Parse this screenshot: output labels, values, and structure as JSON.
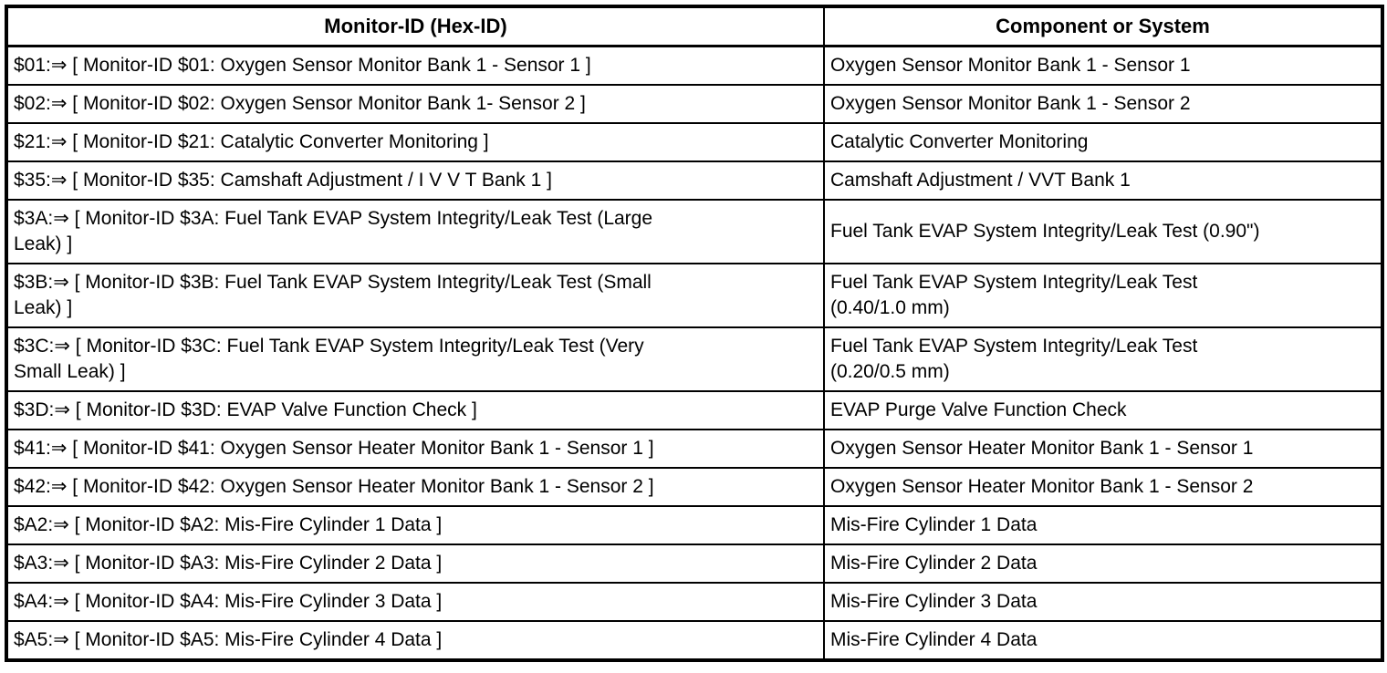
{
  "table": {
    "columns": [
      {
        "label": "Monitor-ID (Hex-ID)"
      },
      {
        "label": "Component or System"
      }
    ],
    "rows": [
      {
        "monitor_id": "$01:⇒ [ Monitor-ID $01: Oxygen Sensor Monitor Bank 1 - Sensor 1 ]",
        "component": "Oxygen Sensor Monitor Bank 1 - Sensor 1"
      },
      {
        "monitor_id": "$02:⇒ [ Monitor-ID $02: Oxygen Sensor Monitor Bank 1- Sensor 2 ]",
        "component": "Oxygen Sensor Monitor Bank 1 - Sensor 2"
      },
      {
        "monitor_id": "$21:⇒ [ Monitor-ID $21: Catalytic Converter Monitoring ]",
        "component": "Catalytic Converter Monitoring"
      },
      {
        "monitor_id": "$35:⇒ [ Monitor-ID $35: Camshaft Adjustment / I V V T Bank 1 ]",
        "component": "Camshaft Adjustment / VVT Bank 1"
      },
      {
        "monitor_id": "$3A:⇒ [ Monitor-ID $3A: Fuel Tank EVAP System Integrity/Leak Test (Large\nLeak) ]",
        "component": "Fuel Tank EVAP System Integrity/Leak Test (0.90\")"
      },
      {
        "monitor_id": "$3B:⇒ [ Monitor-ID $3B: Fuel Tank EVAP System Integrity/Leak Test (Small\nLeak) ]",
        "component": "Fuel Tank EVAP System Integrity/Leak Test\n(0.40/1.0 mm)"
      },
      {
        "monitor_id": "$3C:⇒ [ Monitor-ID $3C: Fuel Tank EVAP System Integrity/Leak Test (Very\nSmall Leak) ]",
        "component": "Fuel Tank EVAP System Integrity/Leak Test\n(0.20/0.5 mm)"
      },
      {
        "monitor_id": "$3D:⇒ [ Monitor-ID $3D: EVAP Valve Function Check ]",
        "component": "EVAP Purge Valve Function Check"
      },
      {
        "monitor_id": "$41:⇒ [ Monitor-ID $41: Oxygen Sensor Heater Monitor Bank 1 - Sensor 1 ]",
        "component": "Oxygen Sensor Heater Monitor Bank 1 - Sensor 1"
      },
      {
        "monitor_id": "$42:⇒ [ Monitor-ID $42: Oxygen Sensor Heater Monitor Bank 1 - Sensor 2 ]",
        "component": "Oxygen Sensor Heater Monitor Bank 1 - Sensor 2"
      },
      {
        "monitor_id": "$A2:⇒ [ Monitor-ID $A2: Mis-Fire Cylinder 1 Data ]",
        "component": "Mis-Fire Cylinder 1 Data"
      },
      {
        "monitor_id": "$A3:⇒ [ Monitor-ID $A3: Mis-Fire Cylinder 2 Data ]",
        "component": "Mis-Fire Cylinder 2 Data"
      },
      {
        "monitor_id": "$A4:⇒ [ Monitor-ID $A4: Mis-Fire Cylinder 3 Data ]",
        "component": "Mis-Fire Cylinder 3 Data"
      },
      {
        "monitor_id": "$A5:⇒ [ Monitor-ID $A5: Mis-Fire Cylinder 4 Data ]",
        "component": "Mis-Fire Cylinder 4 Data"
      }
    ]
  }
}
